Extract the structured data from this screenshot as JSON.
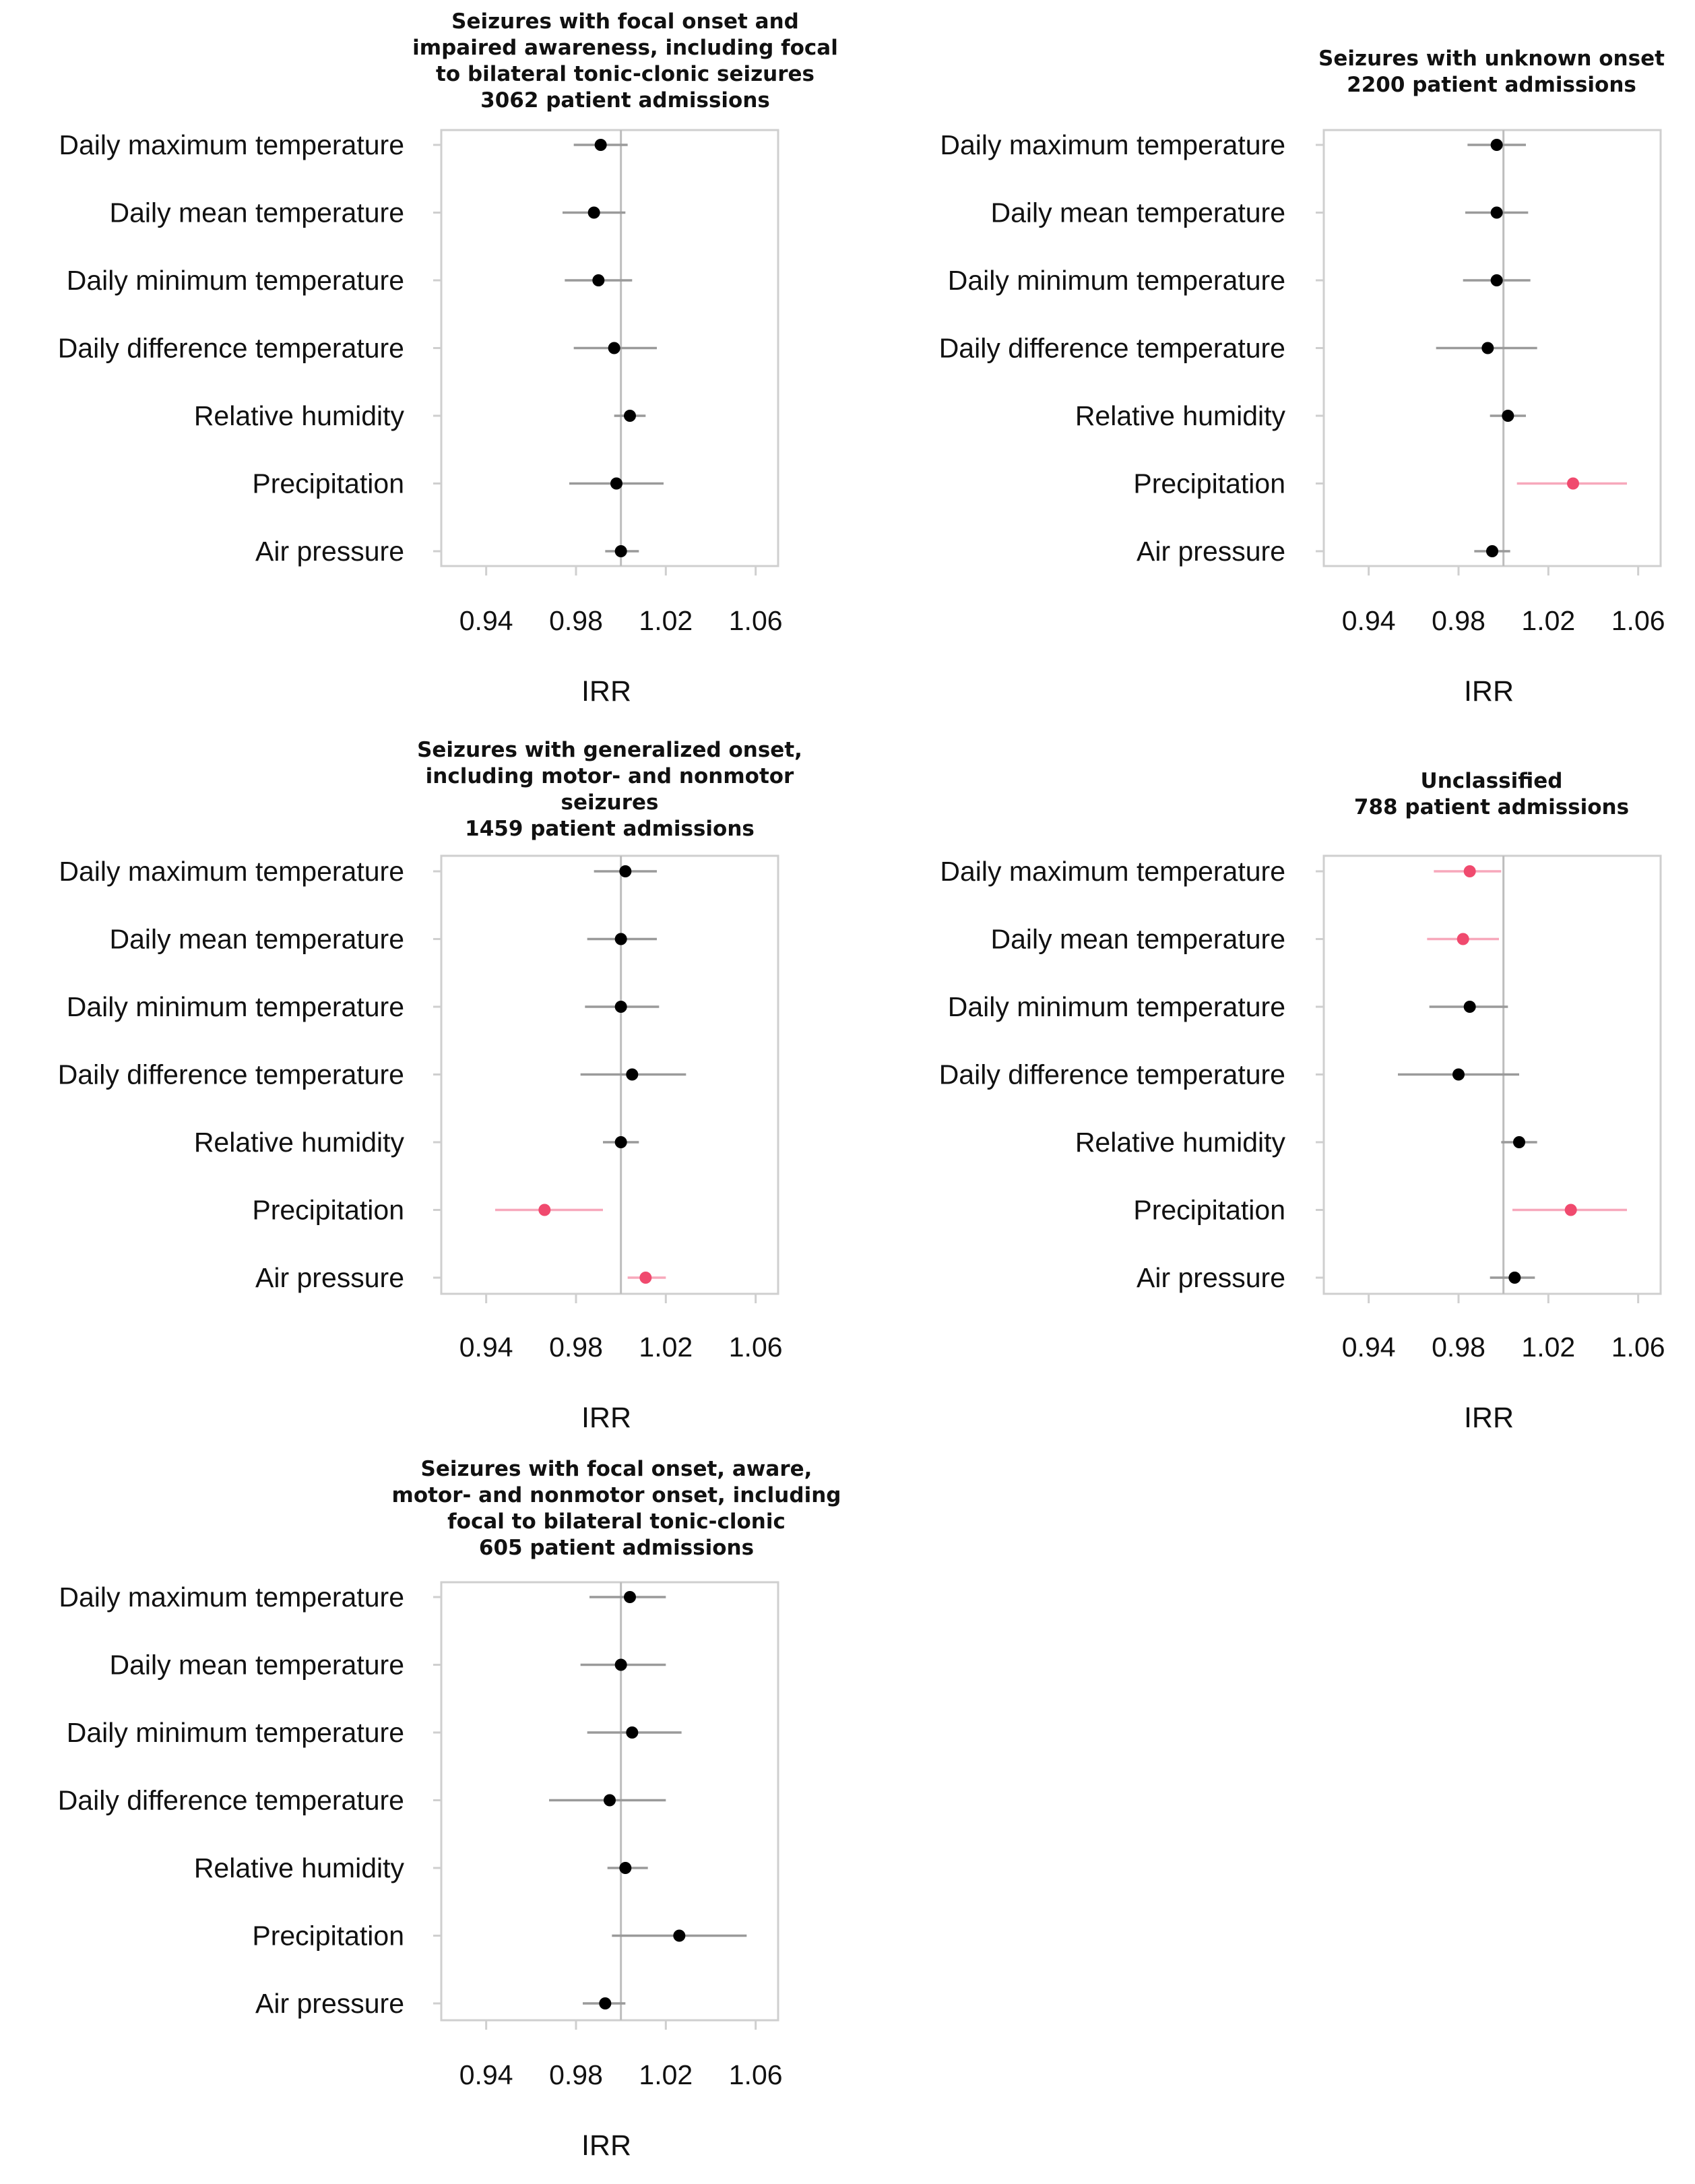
{
  "figure": {
    "colors": {
      "default": "#000000",
      "significant": "#f04a6e",
      "ci_default": "#9a9a9a",
      "ci_significant": "#f7a8bb",
      "frame": "#cfcfcf",
      "reference_line": "#bdbdbd"
    }
  },
  "chart_data": [
    {
      "type": "forest",
      "title_lines": [
        "Seizures with focal onset and",
        "impaired awareness, including  focal",
        "to bilateral tonic-clonic seizures",
        "3062 patient admissions"
      ],
      "xlabel": "IRR",
      "xlim": [
        0.92,
        1.07
      ],
      "xticks": [
        "0.94",
        "0.98",
        "1.02",
        "1.06"
      ],
      "reference": 1.0,
      "categories": [
        "Daily maximum temperature",
        "Daily mean temperature",
        "Daily minimum temperature",
        "Daily difference temperature",
        "Relative humidity",
        "Precipitation",
        "Air pressure"
      ],
      "estimates": [
        0.991,
        0.988,
        0.99,
        0.997,
        1.004,
        0.998,
        1.0
      ],
      "lower": [
        0.979,
        0.974,
        0.975,
        0.979,
        0.997,
        0.977,
        0.993
      ],
      "upper": [
        1.003,
        1.002,
        1.005,
        1.016,
        1.011,
        1.019,
        1.008
      ],
      "significant": [
        false,
        false,
        false,
        false,
        false,
        false,
        false
      ]
    },
    {
      "type": "forest",
      "title_lines": [
        "Seizures with unknown onset",
        "2200 patient admissions"
      ],
      "xlabel": "IRR",
      "xlim": [
        0.92,
        1.07
      ],
      "xticks": [
        "0.94",
        "0.98",
        "1.02",
        "1.06"
      ],
      "reference": 1.0,
      "categories": [
        "Daily maximum temperature",
        "Daily mean temperature",
        "Daily minimum temperature",
        "Daily difference temperature",
        "Relative humidity",
        "Precipitation",
        "Air pressure"
      ],
      "estimates": [
        0.997,
        0.997,
        0.997,
        0.993,
        1.002,
        1.031,
        0.995
      ],
      "lower": [
        0.984,
        0.983,
        0.982,
        0.97,
        0.994,
        1.006,
        0.987
      ],
      "upper": [
        1.01,
        1.011,
        1.012,
        1.015,
        1.01,
        1.055,
        1.003
      ],
      "significant": [
        false,
        false,
        false,
        false,
        false,
        true,
        false
      ]
    },
    {
      "type": "forest",
      "title_lines": [
        "Seizures with generalized onset,",
        "including motor- and nonmotor",
        "seizures",
        "1459 patient admissions"
      ],
      "xlabel": "IRR",
      "xlim": [
        0.92,
        1.07
      ],
      "xticks": [
        "0.94",
        "0.98",
        "1.02",
        "1.06"
      ],
      "reference": 1.0,
      "categories": [
        "Daily maximum temperature",
        "Daily mean temperature",
        "Daily minimum temperature",
        "Daily difference temperature",
        "Relative humidity",
        "Precipitation",
        "Air pressure"
      ],
      "estimates": [
        1.002,
        1.0,
        1.0,
        1.005,
        1.0,
        0.966,
        1.011
      ],
      "lower": [
        0.988,
        0.985,
        0.984,
        0.982,
        0.992,
        0.944,
        1.003
      ],
      "upper": [
        1.016,
        1.016,
        1.017,
        1.029,
        1.008,
        0.992,
        1.02
      ],
      "significant": [
        false,
        false,
        false,
        false,
        false,
        true,
        true
      ]
    },
    {
      "type": "forest",
      "title_lines": [
        "Unclassified",
        "788 patient admissions"
      ],
      "xlabel": "IRR",
      "xlim": [
        0.92,
        1.07
      ],
      "xticks": [
        "0.94",
        "0.98",
        "1.02",
        "1.06"
      ],
      "reference": 1.0,
      "categories": [
        "Daily maximum temperature",
        "Daily mean temperature",
        "Daily minimum temperature",
        "Daily difference temperature",
        "Relative humidity",
        "Precipitation",
        "Air pressure"
      ],
      "estimates": [
        0.985,
        0.982,
        0.985,
        0.98,
        1.007,
        1.03,
        1.005
      ],
      "lower": [
        0.969,
        0.966,
        0.967,
        0.953,
        0.999,
        1.004,
        0.994
      ],
      "upper": [
        0.999,
        0.998,
        1.002,
        1.007,
        1.015,
        1.055,
        1.014
      ],
      "significant": [
        true,
        true,
        false,
        false,
        false,
        true,
        false
      ]
    },
    {
      "type": "forest",
      "title_lines": [
        "Seizures with focal onset, aware,",
        "motor- and nonmotor onset, including",
        "focal to bilateral tonic-clonic",
        "605 patient admissions"
      ],
      "xlabel": "IRR",
      "xlim": [
        0.92,
        1.07
      ],
      "xticks": [
        "0.94",
        "0.98",
        "1.02",
        "1.06"
      ],
      "reference": 1.0,
      "categories": [
        "Daily maximum temperature",
        "Daily mean temperature",
        "Daily minimum temperature",
        "Daily difference temperature",
        "Relative humidity",
        "Precipitation",
        "Air pressure"
      ],
      "estimates": [
        1.004,
        1.0,
        1.005,
        0.995,
        1.002,
        1.026,
        0.993
      ],
      "lower": [
        0.986,
        0.982,
        0.985,
        0.968,
        0.994,
        0.996,
        0.983
      ],
      "upper": [
        1.02,
        1.02,
        1.027,
        1.02,
        1.012,
        1.056,
        1.002
      ],
      "significant": [
        false,
        false,
        false,
        false,
        false,
        false,
        false
      ]
    }
  ]
}
